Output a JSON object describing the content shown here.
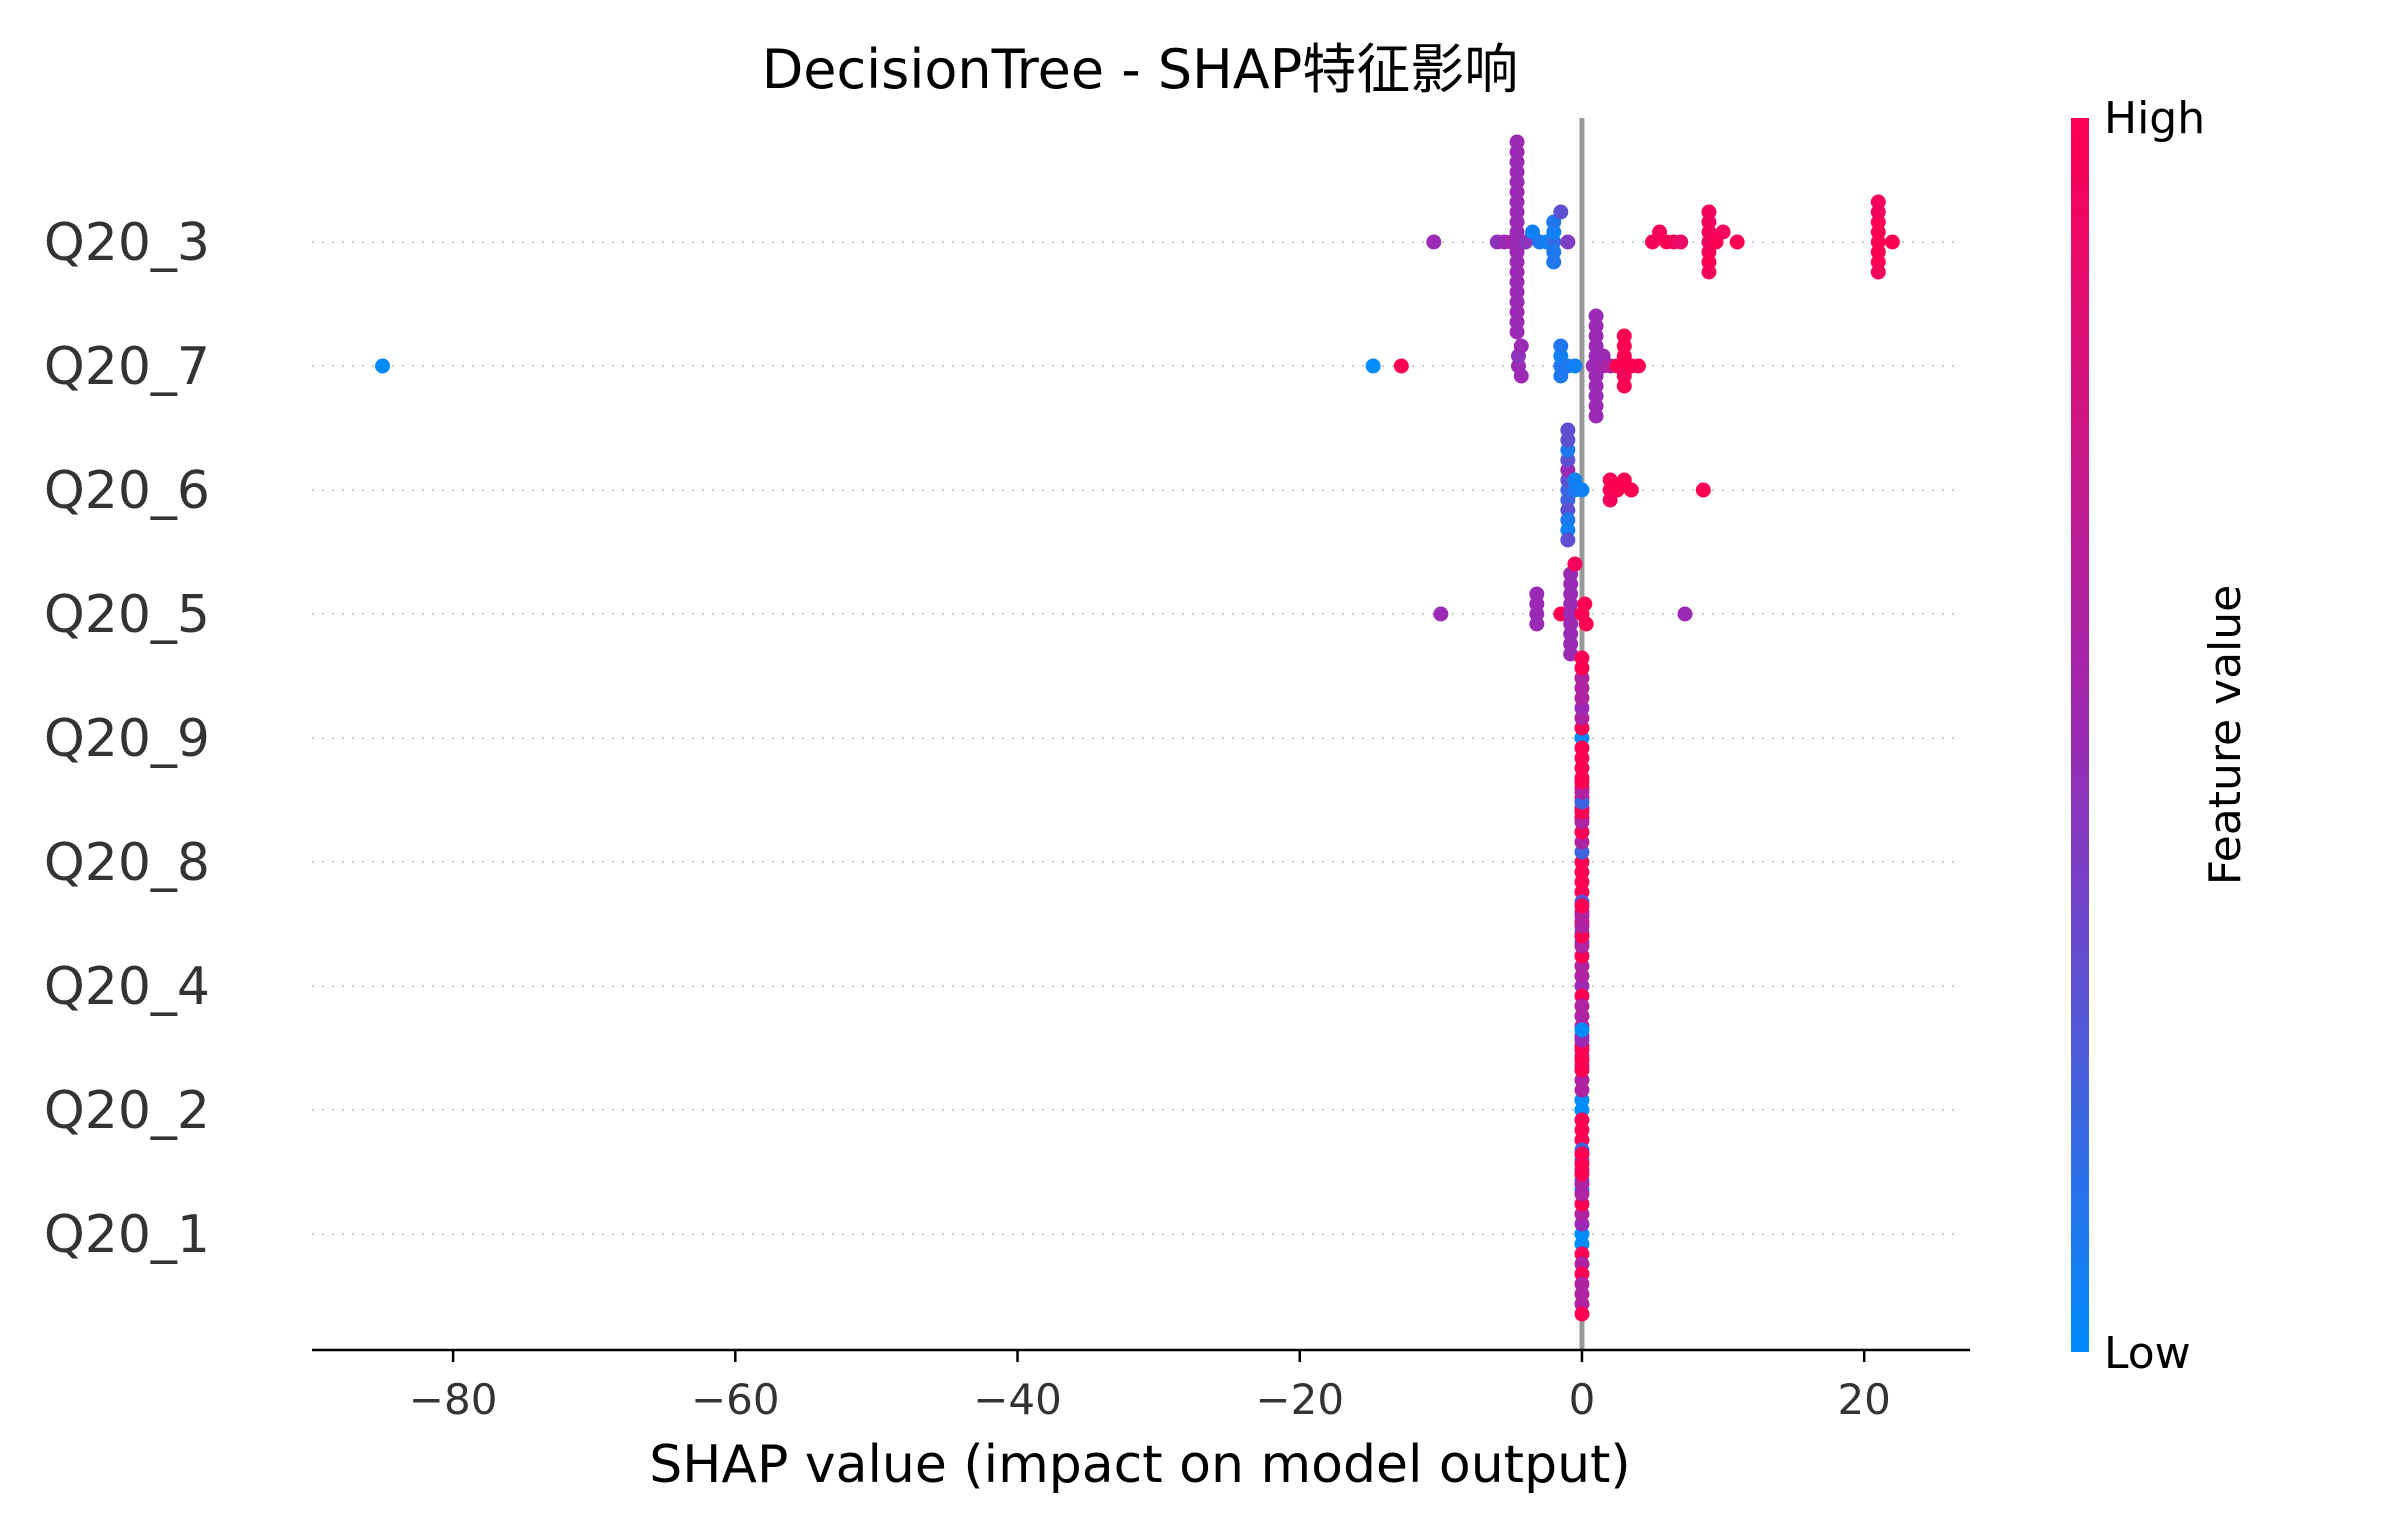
{
  "chart_data": {
    "type": "scatter",
    "title": "DecisionTree - SHAP特征影响",
    "xlabel": "SHAP value (impact on model output)",
    "xlim": [
      -90,
      27.5
    ],
    "xticks": [
      -80,
      -60,
      -40,
      -20,
      0,
      20
    ],
    "xtick_labels": [
      "−80",
      "−60",
      "−40",
      "−20",
      "0",
      "20"
    ],
    "zero_line": true,
    "grid": "dotted horizontal per feature",
    "colorbar": {
      "label": "Feature value",
      "high_label": "High",
      "low_label": "Low",
      "low_color": "#008BFB",
      "mid_color": "#9B2BB5",
      "high_color": "#FF0052"
    },
    "features": [
      {
        "name": "Q20_3",
        "points": [
          [
            -10.5,
            0.5
          ],
          [
            -6,
            0.45
          ],
          [
            -5.5,
            0.5
          ],
          [
            -5,
            0.55
          ],
          [
            -4.6,
            0.5
          ],
          [
            -4.6,
            0.5
          ],
          [
            -4.6,
            0.5
          ],
          [
            -4.6,
            0.5
          ],
          [
            -4.6,
            0.5
          ],
          [
            -4.6,
            0.5
          ],
          [
            -4.6,
            0.5
          ],
          [
            -4.6,
            0.5
          ],
          [
            -4.6,
            0.5
          ],
          [
            -4.6,
            0.5
          ],
          [
            -4.6,
            0.5
          ],
          [
            -4.6,
            0.5
          ],
          [
            -4.6,
            0.5
          ],
          [
            -4.6,
            0.5
          ],
          [
            -4.6,
            0.5
          ],
          [
            -4.6,
            0.5
          ],
          [
            -4.6,
            0.5
          ],
          [
            -4.6,
            0.5
          ],
          [
            -4.6,
            0.5
          ],
          [
            -4.6,
            0.5
          ],
          [
            -4,
            0.45
          ],
          [
            -3.5,
            0.05
          ],
          [
            -3,
            0.1
          ],
          [
            -2.5,
            0.05
          ],
          [
            -2,
            0.15
          ],
          [
            -2,
            0.05
          ],
          [
            -2,
            0.1
          ],
          [
            -2,
            0.1
          ],
          [
            -2,
            0.1
          ],
          [
            -1.5,
            0.3
          ],
          [
            -1,
            0.4
          ],
          [
            5,
            0.95
          ],
          [
            5.5,
            0.95
          ],
          [
            6,
            1.0
          ],
          [
            6.5,
            0.95
          ],
          [
            7,
            0.9
          ],
          [
            9,
            0.9
          ],
          [
            9,
            0.95
          ],
          [
            9,
            0.95
          ],
          [
            9,
            0.95
          ],
          [
            9,
            1.0
          ],
          [
            9,
            0.95
          ],
          [
            9,
            0.95
          ],
          [
            9.5,
            1.0
          ],
          [
            10,
            0.95
          ],
          [
            11,
            1.0
          ],
          [
            21,
            1.0
          ],
          [
            21,
            1.0
          ],
          [
            21,
            1.0
          ],
          [
            21,
            1.0
          ],
          [
            21,
            1.0
          ],
          [
            21,
            0.95
          ],
          [
            21,
            0.95
          ],
          [
            21,
            0.95
          ],
          [
            22,
            1.0
          ]
        ]
      },
      {
        "name": "Q20_7",
        "points": [
          [
            -85,
            0.0
          ],
          [
            -14.8,
            0.0
          ],
          [
            -12.8,
            1.0
          ],
          [
            -4.5,
            0.5
          ],
          [
            -4.5,
            0.45
          ],
          [
            -4.3,
            0.5
          ],
          [
            -4.3,
            0.5
          ],
          [
            -1.5,
            0.1
          ],
          [
            -1.5,
            0.05
          ],
          [
            -1.5,
            0.1
          ],
          [
            -1.5,
            0.1
          ],
          [
            -1,
            0.1
          ],
          [
            -0.5,
            0.05
          ],
          [
            0.8,
            0.5
          ],
          [
            1,
            0.5
          ],
          [
            1,
            0.5
          ],
          [
            1,
            0.5
          ],
          [
            1,
            0.5
          ],
          [
            1,
            0.5
          ],
          [
            1,
            0.5
          ],
          [
            1,
            0.5
          ],
          [
            1,
            0.5
          ],
          [
            1,
            0.5
          ],
          [
            1,
            0.5
          ],
          [
            1.5,
            0.55
          ],
          [
            1.5,
            0.5
          ],
          [
            2,
            0.6
          ],
          [
            2.5,
            1.0
          ],
          [
            3,
            1.0
          ],
          [
            3,
            0.95
          ],
          [
            3,
            1.0
          ],
          [
            3,
            1.0
          ],
          [
            3,
            1.0
          ],
          [
            3.5,
            1.0
          ],
          [
            4,
            1.0
          ]
        ]
      },
      {
        "name": "Q20_6",
        "points": [
          [
            -1,
            0.2
          ],
          [
            -1,
            0.3
          ],
          [
            -1,
            0.2
          ],
          [
            -1,
            0.5
          ],
          [
            -1,
            0.3
          ],
          [
            -1,
            0.3
          ],
          [
            -1,
            0.1
          ],
          [
            -1,
            0.1
          ],
          [
            -1,
            0.05
          ],
          [
            -1,
            0.3
          ],
          [
            -1,
            0.3
          ],
          [
            -1,
            0.3
          ],
          [
            -0.5,
            0.1
          ],
          [
            -0.5,
            0.05
          ],
          [
            0,
            0.05
          ],
          [
            2,
            1.0
          ],
          [
            2,
            1.0
          ],
          [
            2,
            0.95
          ],
          [
            2.5,
            1.0
          ],
          [
            3,
            1.0
          ],
          [
            3.5,
            1.0
          ],
          [
            8.6,
            1.0
          ]
        ]
      },
      {
        "name": "Q20_5",
        "points": [
          [
            -10,
            0.5
          ],
          [
            -3.2,
            0.5
          ],
          [
            -3.2,
            0.5
          ],
          [
            -3.2,
            0.5
          ],
          [
            -3.2,
            0.5
          ],
          [
            -1.5,
            1.0
          ],
          [
            -0.8,
            0.5
          ],
          [
            -0.8,
            0.5
          ],
          [
            -0.8,
            0.5
          ],
          [
            -0.8,
            0.5
          ],
          [
            -0.8,
            0.5
          ],
          [
            -0.8,
            0.5
          ],
          [
            -0.8,
            0.5
          ],
          [
            -0.8,
            0.5
          ],
          [
            -0.8,
            0.5
          ],
          [
            -0.5,
            0.95
          ],
          [
            0,
            1.0
          ],
          [
            0.2,
            1.0
          ],
          [
            0.3,
            1.0
          ],
          [
            7.3,
            0.5
          ]
        ]
      },
      {
        "name": "Q20_9",
        "points": [
          [
            0,
            0.0
          ],
          [
            0,
            1.0
          ],
          [
            0,
            1.0
          ],
          [
            0,
            0.6
          ],
          [
            0,
            1.0
          ],
          [
            0,
            0.5
          ],
          [
            0,
            1.0
          ],
          [
            0,
            0.6
          ],
          [
            0,
            1.0
          ],
          [
            0,
            0.6
          ],
          [
            0,
            1.0
          ],
          [
            0,
            0.6
          ],
          [
            0,
            1.0
          ],
          [
            0,
            1.0
          ],
          [
            0,
            0.6
          ],
          [
            0,
            1.0
          ],
          [
            0,
            1.0
          ]
        ]
      },
      {
        "name": "Q20_8",
        "points": [
          [
            0,
            1.0
          ],
          [
            0,
            0.2
          ],
          [
            0,
            1.0
          ],
          [
            0,
            0.6
          ],
          [
            0,
            1.0
          ],
          [
            0,
            1.0
          ],
          [
            0,
            1.0
          ],
          [
            0,
            0.6
          ],
          [
            0,
            0.3
          ],
          [
            0,
            1.0
          ],
          [
            0,
            0.6
          ],
          [
            0,
            0.2
          ],
          [
            0,
            1.0
          ],
          [
            0,
            0.6
          ],
          [
            0,
            0.2
          ],
          [
            0,
            1.0
          ],
          [
            0,
            0.3
          ]
        ]
      },
      {
        "name": "Q20_4",
        "points": [
          [
            0,
            0.5
          ],
          [
            0,
            0.6
          ],
          [
            0,
            1.0
          ],
          [
            0,
            0.6
          ],
          [
            0,
            0.6
          ],
          [
            0,
            1.0
          ],
          [
            0,
            0.6
          ],
          [
            0,
            0.6
          ],
          [
            0,
            0.6
          ],
          [
            0,
            1.0
          ],
          [
            0,
            0.6
          ],
          [
            0,
            0.6
          ],
          [
            0,
            1.0
          ],
          [
            0,
            0.6
          ],
          [
            0,
            0.6
          ],
          [
            0,
            1.0
          ],
          [
            0,
            0.6
          ]
        ]
      },
      {
        "name": "Q20_2",
        "points": [
          [
            0,
            0.0
          ],
          [
            0,
            0.0
          ],
          [
            0,
            1.0
          ],
          [
            0,
            0.6
          ],
          [
            0,
            1.0
          ],
          [
            0,
            0.6
          ],
          [
            0,
            1.0
          ],
          [
            0,
            1.0
          ],
          [
            0,
            0.2
          ],
          [
            0,
            1.0
          ],
          [
            0,
            0.2
          ],
          [
            0,
            1.0
          ],
          [
            0,
            0.6
          ],
          [
            0,
            0.5
          ],
          [
            0,
            0.2
          ],
          [
            0,
            0.0
          ],
          [
            0,
            0.0
          ]
        ]
      },
      {
        "name": "Q20_1",
        "points": [
          [
            0,
            0.0
          ],
          [
            0,
            0.5
          ],
          [
            0,
            0.0
          ],
          [
            0,
            0.6
          ],
          [
            0,
            1.0
          ],
          [
            0,
            1.0
          ],
          [
            0,
            0.6
          ],
          [
            0,
            0.6
          ],
          [
            0,
            1.0
          ],
          [
            0,
            0.6
          ],
          [
            0,
            0.6
          ],
          [
            0,
            1.0
          ],
          [
            0,
            0.6
          ],
          [
            0,
            1.0
          ],
          [
            0,
            0.6
          ],
          [
            0,
            1.0
          ],
          [
            0,
            1.0
          ]
        ]
      }
    ]
  }
}
